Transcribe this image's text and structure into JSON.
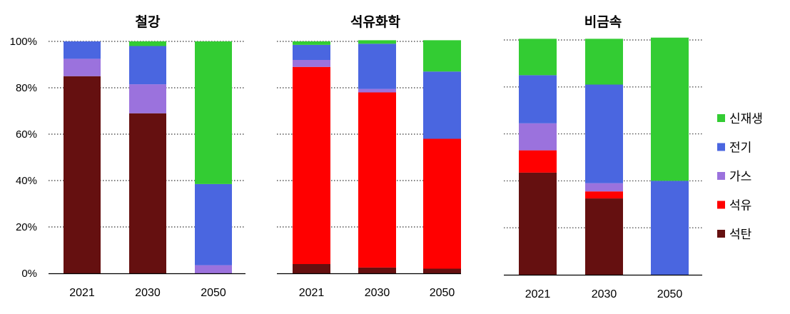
{
  "chart_data": {
    "type": "bar",
    "stacked": true,
    "categories": [
      "2021",
      "2030",
      "2050"
    ],
    "ylim": [
      0,
      100
    ],
    "yticks": [
      "0%",
      "20%",
      "40%",
      "60%",
      "80%",
      "100%"
    ],
    "grid": "horizontal-dotted",
    "legend_position": "right",
    "legend": [
      {
        "name": "신재생",
        "color": "#33cc33"
      },
      {
        "name": "전기",
        "color": "#4a66e0"
      },
      {
        "name": "가스",
        "color": "#9b72dd"
      },
      {
        "name": "석유",
        "color": "#ff0000"
      },
      {
        "name": "석탄",
        "color": "#651010"
      }
    ],
    "panels": [
      {
        "title": "철강",
        "series": [
          {
            "name": "석탄",
            "color": "#651010",
            "values": [
              85,
              69,
              0
            ]
          },
          {
            "name": "석유",
            "color": "#ff0000",
            "values": [
              0,
              0,
              0
            ]
          },
          {
            "name": "가스",
            "color": "#9b72dd",
            "values": [
              7.5,
              12.5,
              3.5
            ]
          },
          {
            "name": "전기",
            "color": "#4a66e0",
            "values": [
              7.5,
              16.5,
              35
            ]
          },
          {
            "name": "신재생",
            "color": "#33cc33",
            "values": [
              0,
              2,
              61.5
            ]
          }
        ]
      },
      {
        "title": "석유화학",
        "series": [
          {
            "name": "석탄",
            "color": "#651010",
            "values": [
              4,
              2.5,
              2
            ]
          },
          {
            "name": "석유",
            "color": "#ff0000",
            "values": [
              85,
              75.5,
              56
            ]
          },
          {
            "name": "가스",
            "color": "#9b72dd",
            "values": [
              3,
              1.5,
              0
            ]
          },
          {
            "name": "전기",
            "color": "#4a66e0",
            "values": [
              6.5,
              19.5,
              29
            ]
          },
          {
            "name": "신재생",
            "color": "#33cc33",
            "values": [
              1.5,
              1.5,
              13.5
            ]
          }
        ]
      },
      {
        "title": "비금속",
        "series": [
          {
            "name": "석탄",
            "color": "#651010",
            "values": [
              43.5,
              32.5,
              0
            ]
          },
          {
            "name": "석유",
            "color": "#ff0000",
            "values": [
              9.5,
              3,
              0
            ]
          },
          {
            "name": "가스",
            "color": "#9b72dd",
            "values": [
              11.5,
              3.5,
              0
            ]
          },
          {
            "name": "전기",
            "color": "#4a66e0",
            "values": [
              20.5,
              42,
              40
            ]
          },
          {
            "name": "신재생",
            "color": "#33cc33",
            "values": [
              15.5,
              19.5,
              61
            ]
          }
        ]
      }
    ]
  }
}
